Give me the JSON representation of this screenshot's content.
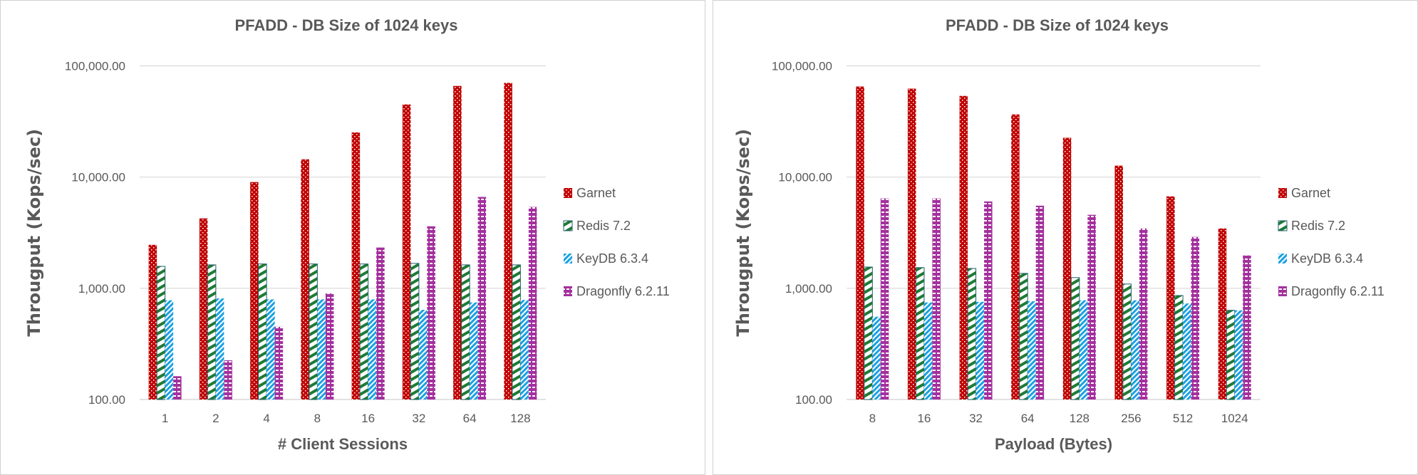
{
  "chart_data": [
    {
      "type": "bar",
      "title": "PFADD - DB Size of 1024  keys",
      "xlabel": "# Client Sessions",
      "ylabel": "Througput (Kops/sec)",
      "yscale": "log",
      "ylim": [
        100,
        100000
      ],
      "yticks": [
        "100.00",
        "1,000.00",
        "10,000.00",
        "100,000.00"
      ],
      "grid": true,
      "legend": "right",
      "categories": [
        "1",
        "2",
        "4",
        "8",
        "16",
        "32",
        "64",
        "128"
      ],
      "series": [
        {
          "name": "Garnet",
          "color": "#C00000",
          "values": [
            2460,
            4250,
            9020,
            14450,
            25200,
            45000,
            66000,
            70300
          ]
        },
        {
          "name": "Redis 7.2",
          "color": "#1E7B34",
          "values": [
            1575,
            1625,
            1655,
            1655,
            1655,
            1675,
            1625,
            1625
          ]
        },
        {
          "name": "KeyDB 6.3.4",
          "color": "#1BA1E2",
          "values": [
            780,
            810,
            795,
            795,
            795,
            641,
            746,
            784
          ]
        },
        {
          "name": "Dragonfly 6.2.11",
          "color": "#A4309E",
          "values": [
            162,
            225,
            451,
            900,
            2325,
            3610,
            6630,
            5390
          ]
        }
      ]
    },
    {
      "type": "bar",
      "title": "PFADD - DB Size of 1024  keys",
      "xlabel": "Payload (Bytes)",
      "ylabel": "Througput (Kops/sec)",
      "yscale": "log",
      "ylim": [
        100,
        100000
      ],
      "yticks": [
        "100.00",
        "1,000.00",
        "10,000.00",
        "100,000.00"
      ],
      "grid": true,
      "legend": "right",
      "categories": [
        "8",
        "16",
        "32",
        "64",
        "128",
        "256",
        "512",
        "1024"
      ],
      "series": [
        {
          "name": "Garnet",
          "color": "#C00000",
          "values": [
            65200,
            62400,
            53700,
            36600,
            22550,
            12670,
            6710,
            3450
          ]
        },
        {
          "name": "Redis 7.2",
          "color": "#1E7B34",
          "values": [
            1553,
            1535,
            1507,
            1362,
            1248,
            1093,
            861,
            634
          ]
        },
        {
          "name": "KeyDB 6.3.4",
          "color": "#1BA1E2",
          "values": [
            555,
            746,
            755,
            765,
            780,
            780,
            731,
            634
          ]
        },
        {
          "name": "Dragonfly 6.2.11",
          "color": "#A4309E",
          "values": [
            6430,
            6430,
            6040,
            5530,
            4580,
            3450,
            2900,
            1975
          ]
        }
      ]
    }
  ]
}
